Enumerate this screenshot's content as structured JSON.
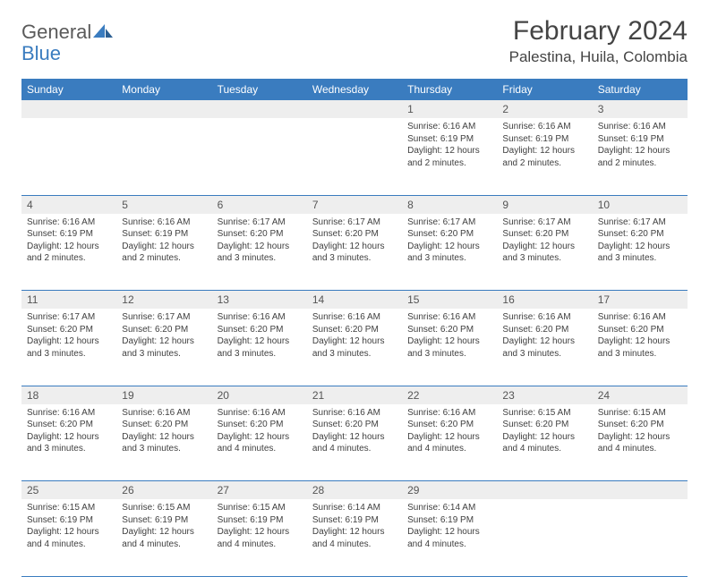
{
  "logo": {
    "line1": "General",
    "line2": "Blue"
  },
  "title": "February 2024",
  "location": "Palestina, Huila, Colombia",
  "colors": {
    "header_bg": "#3a7cbf",
    "header_fg": "#ffffff",
    "daynum_bg": "#eeeeee",
    "rule": "#3a7cbf",
    "body_fg": "#3f3f3f",
    "page_bg": "#ffffff"
  },
  "days_of_week": [
    "Sunday",
    "Monday",
    "Tuesday",
    "Wednesday",
    "Thursday",
    "Friday",
    "Saturday"
  ],
  "weeks": [
    {
      "nums": [
        "",
        "",
        "",
        "",
        "1",
        "2",
        "3"
      ],
      "cells": [
        null,
        null,
        null,
        null,
        {
          "sunrise": "Sunrise: 6:16 AM",
          "sunset": "Sunset: 6:19 PM",
          "daylight": "Daylight: 12 hours and 2 minutes."
        },
        {
          "sunrise": "Sunrise: 6:16 AM",
          "sunset": "Sunset: 6:19 PM",
          "daylight": "Daylight: 12 hours and 2 minutes."
        },
        {
          "sunrise": "Sunrise: 6:16 AM",
          "sunset": "Sunset: 6:19 PM",
          "daylight": "Daylight: 12 hours and 2 minutes."
        }
      ]
    },
    {
      "nums": [
        "4",
        "5",
        "6",
        "7",
        "8",
        "9",
        "10"
      ],
      "cells": [
        {
          "sunrise": "Sunrise: 6:16 AM",
          "sunset": "Sunset: 6:19 PM",
          "daylight": "Daylight: 12 hours and 2 minutes."
        },
        {
          "sunrise": "Sunrise: 6:16 AM",
          "sunset": "Sunset: 6:19 PM",
          "daylight": "Daylight: 12 hours and 2 minutes."
        },
        {
          "sunrise": "Sunrise: 6:17 AM",
          "sunset": "Sunset: 6:20 PM",
          "daylight": "Daylight: 12 hours and 3 minutes."
        },
        {
          "sunrise": "Sunrise: 6:17 AM",
          "sunset": "Sunset: 6:20 PM",
          "daylight": "Daylight: 12 hours and 3 minutes."
        },
        {
          "sunrise": "Sunrise: 6:17 AM",
          "sunset": "Sunset: 6:20 PM",
          "daylight": "Daylight: 12 hours and 3 minutes."
        },
        {
          "sunrise": "Sunrise: 6:17 AM",
          "sunset": "Sunset: 6:20 PM",
          "daylight": "Daylight: 12 hours and 3 minutes."
        },
        {
          "sunrise": "Sunrise: 6:17 AM",
          "sunset": "Sunset: 6:20 PM",
          "daylight": "Daylight: 12 hours and 3 minutes."
        }
      ]
    },
    {
      "nums": [
        "11",
        "12",
        "13",
        "14",
        "15",
        "16",
        "17"
      ],
      "cells": [
        {
          "sunrise": "Sunrise: 6:17 AM",
          "sunset": "Sunset: 6:20 PM",
          "daylight": "Daylight: 12 hours and 3 minutes."
        },
        {
          "sunrise": "Sunrise: 6:17 AM",
          "sunset": "Sunset: 6:20 PM",
          "daylight": "Daylight: 12 hours and 3 minutes."
        },
        {
          "sunrise": "Sunrise: 6:16 AM",
          "sunset": "Sunset: 6:20 PM",
          "daylight": "Daylight: 12 hours and 3 minutes."
        },
        {
          "sunrise": "Sunrise: 6:16 AM",
          "sunset": "Sunset: 6:20 PM",
          "daylight": "Daylight: 12 hours and 3 minutes."
        },
        {
          "sunrise": "Sunrise: 6:16 AM",
          "sunset": "Sunset: 6:20 PM",
          "daylight": "Daylight: 12 hours and 3 minutes."
        },
        {
          "sunrise": "Sunrise: 6:16 AM",
          "sunset": "Sunset: 6:20 PM",
          "daylight": "Daylight: 12 hours and 3 minutes."
        },
        {
          "sunrise": "Sunrise: 6:16 AM",
          "sunset": "Sunset: 6:20 PM",
          "daylight": "Daylight: 12 hours and 3 minutes."
        }
      ]
    },
    {
      "nums": [
        "18",
        "19",
        "20",
        "21",
        "22",
        "23",
        "24"
      ],
      "cells": [
        {
          "sunrise": "Sunrise: 6:16 AM",
          "sunset": "Sunset: 6:20 PM",
          "daylight": "Daylight: 12 hours and 3 minutes."
        },
        {
          "sunrise": "Sunrise: 6:16 AM",
          "sunset": "Sunset: 6:20 PM",
          "daylight": "Daylight: 12 hours and 3 minutes."
        },
        {
          "sunrise": "Sunrise: 6:16 AM",
          "sunset": "Sunset: 6:20 PM",
          "daylight": "Daylight: 12 hours and 4 minutes."
        },
        {
          "sunrise": "Sunrise: 6:16 AM",
          "sunset": "Sunset: 6:20 PM",
          "daylight": "Daylight: 12 hours and 4 minutes."
        },
        {
          "sunrise": "Sunrise: 6:16 AM",
          "sunset": "Sunset: 6:20 PM",
          "daylight": "Daylight: 12 hours and 4 minutes."
        },
        {
          "sunrise": "Sunrise: 6:15 AM",
          "sunset": "Sunset: 6:20 PM",
          "daylight": "Daylight: 12 hours and 4 minutes."
        },
        {
          "sunrise": "Sunrise: 6:15 AM",
          "sunset": "Sunset: 6:20 PM",
          "daylight": "Daylight: 12 hours and 4 minutes."
        }
      ]
    },
    {
      "nums": [
        "25",
        "26",
        "27",
        "28",
        "29",
        "",
        ""
      ],
      "cells": [
        {
          "sunrise": "Sunrise: 6:15 AM",
          "sunset": "Sunset: 6:19 PM",
          "daylight": "Daylight: 12 hours and 4 minutes."
        },
        {
          "sunrise": "Sunrise: 6:15 AM",
          "sunset": "Sunset: 6:19 PM",
          "daylight": "Daylight: 12 hours and 4 minutes."
        },
        {
          "sunrise": "Sunrise: 6:15 AM",
          "sunset": "Sunset: 6:19 PM",
          "daylight": "Daylight: 12 hours and 4 minutes."
        },
        {
          "sunrise": "Sunrise: 6:14 AM",
          "sunset": "Sunset: 6:19 PM",
          "daylight": "Daylight: 12 hours and 4 minutes."
        },
        {
          "sunrise": "Sunrise: 6:14 AM",
          "sunset": "Sunset: 6:19 PM",
          "daylight": "Daylight: 12 hours and 4 minutes."
        },
        null,
        null
      ]
    }
  ]
}
